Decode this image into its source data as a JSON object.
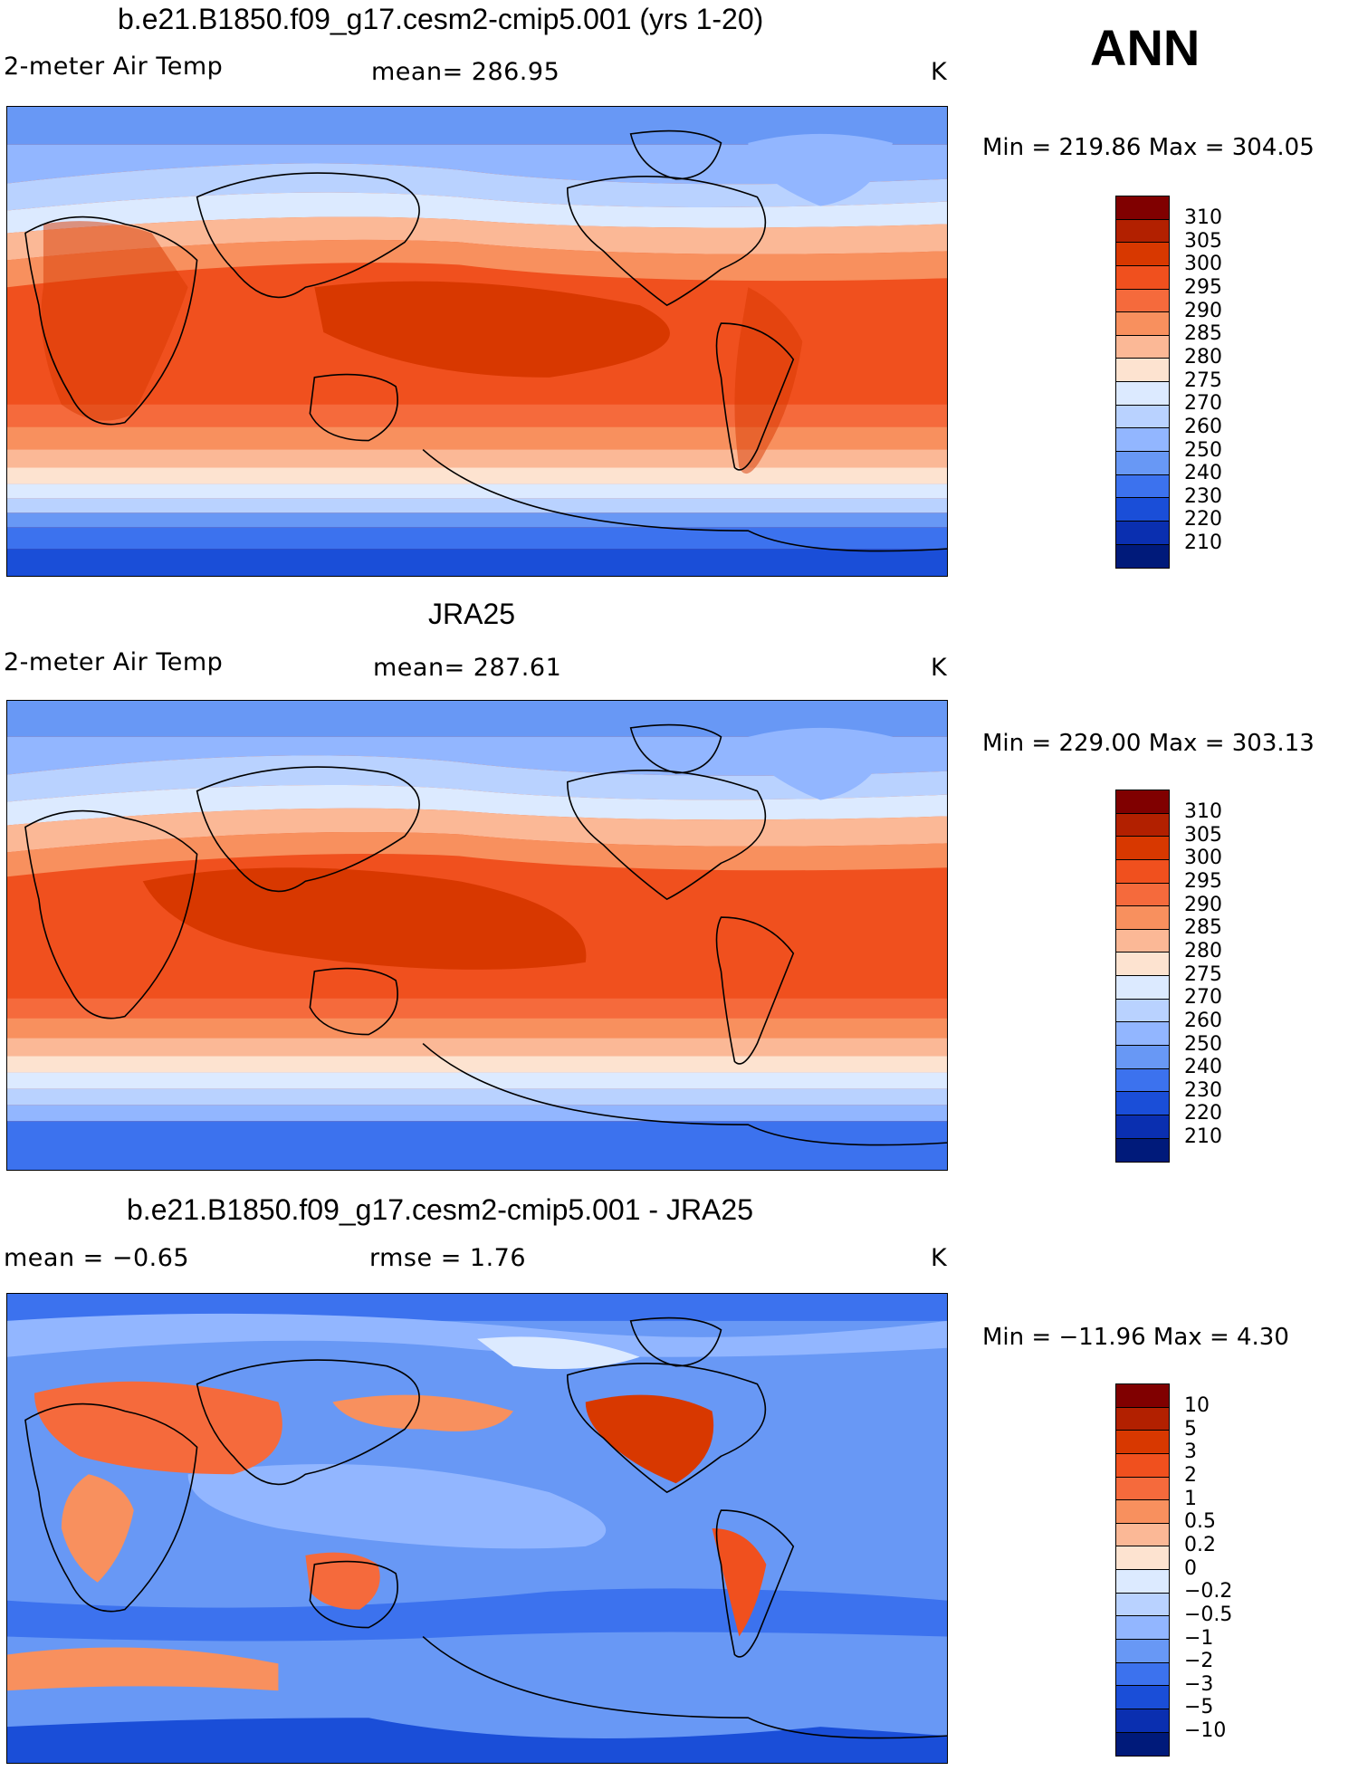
{
  "season": "ANN",
  "panels": [
    {
      "id": "model",
      "title": "b.e21.B1850.f09_g17.cesm2-cmip5.001 (yrs 1-20)",
      "variable": "2-meter Air Temp",
      "stat1": "mean=  286.95",
      "stat2": "",
      "units": "K",
      "minmax": "Min = 219.86 Max = 304.05",
      "colorbar": {
        "levels": [
          "310",
          "305",
          "300",
          "295",
          "290",
          "285",
          "280",
          "275",
          "270",
          "260",
          "250",
          "240",
          "230",
          "220",
          "210"
        ],
        "colors": [
          "#800000",
          "#b22000",
          "#d83800",
          "#f0501e",
          "#f56a3c",
          "#f8905e",
          "#fbb896",
          "#fde3d0",
          "#dceaff",
          "#b9d2ff",
          "#92b6ff",
          "#6898f5",
          "#3c72ee",
          "#1a4ed8",
          "#0a2fb0",
          "#001a7a"
        ]
      }
    },
    {
      "id": "obs",
      "title": "JRA25",
      "variable": "2-meter Air Temp",
      "stat1": "mean=  287.61",
      "stat2": "",
      "units": "K",
      "minmax": "Min = 229.00 Max = 303.13",
      "colorbar": {
        "levels": [
          "310",
          "305",
          "300",
          "295",
          "290",
          "285",
          "280",
          "275",
          "270",
          "260",
          "250",
          "240",
          "230",
          "220",
          "210"
        ],
        "colors": [
          "#800000",
          "#b22000",
          "#d83800",
          "#f0501e",
          "#f56a3c",
          "#f8905e",
          "#fbb896",
          "#fde3d0",
          "#dceaff",
          "#b9d2ff",
          "#92b6ff",
          "#6898f5",
          "#3c72ee",
          "#1a4ed8",
          "#0a2fb0",
          "#001a7a"
        ]
      }
    },
    {
      "id": "diff",
      "title": "b.e21.B1850.f09_g17.cesm2-cmip5.001 - JRA25",
      "variable": "",
      "stat1": "mean =   −0.65",
      "stat2": "rmse =    1.76",
      "units": "K",
      "minmax": "Min = −11.96 Max =    4.30",
      "colorbar": {
        "levels": [
          "10",
          "5",
          "3",
          "2",
          "1",
          "0.5",
          "0.2",
          "0",
          "−0.2",
          "−0.5",
          "−1",
          "−2",
          "−3",
          "−5",
          "−10"
        ],
        "colors": [
          "#800000",
          "#b22000",
          "#d83800",
          "#f0501e",
          "#f56a3c",
          "#f8905e",
          "#fbb896",
          "#fde3d0",
          "#dceaff",
          "#b9d2ff",
          "#92b6ff",
          "#6898f5",
          "#3c72ee",
          "#1a4ed8",
          "#0a2fb0",
          "#001a7a"
        ]
      }
    }
  ]
}
